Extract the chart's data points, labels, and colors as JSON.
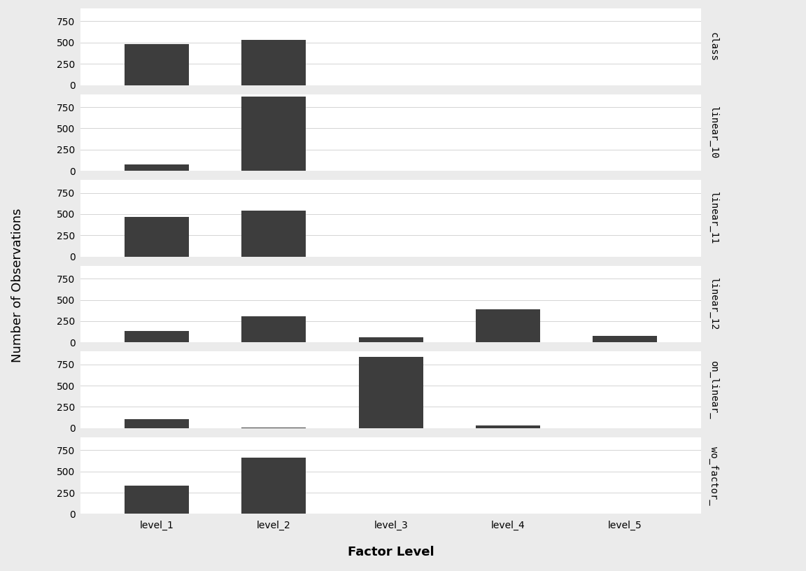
{
  "facets": [
    {
      "name": "class",
      "levels": [
        "level_1",
        "level_2",
        "level_3",
        "level_4",
        "level_5"
      ],
      "values": [
        480,
        530,
        0,
        0,
        0
      ]
    },
    {
      "name": "linear_10",
      "levels": [
        "level_1",
        "level_2",
        "level_3",
        "level_4",
        "level_5"
      ],
      "values": [
        75,
        870,
        0,
        0,
        0
      ]
    },
    {
      "name": "linear_11",
      "levels": [
        "level_1",
        "level_2",
        "level_3",
        "level_4",
        "level_5"
      ],
      "values": [
        470,
        540,
        0,
        0,
        0
      ]
    },
    {
      "name": "linear_12",
      "levels": [
        "level_1",
        "level_2",
        "level_3",
        "level_4",
        "level_5"
      ],
      "values": [
        135,
        310,
        60,
        390,
        75
      ]
    },
    {
      "name": "on_linear_",
      "levels": [
        "level_1",
        "level_2",
        "level_3",
        "level_4",
        "level_5"
      ],
      "values": [
        105,
        10,
        840,
        35,
        0
      ]
    },
    {
      "name": "wo_factor_",
      "levels": [
        "level_1",
        "level_2",
        "level_3",
        "level_4",
        "level_5"
      ],
      "values": [
        330,
        660,
        0,
        0,
        0
      ]
    }
  ],
  "bar_color": "#3d3d3d",
  "bar_width": 0.55,
  "background_color": "#ebebeb",
  "plot_background_color": "#ffffff",
  "grid_color": "#d4d4d4",
  "xlabel": "Factor Level",
  "ylabel": "Number of Observations",
  "ylim": [
    0,
    900
  ],
  "yticks": [
    0,
    250,
    500,
    750
  ],
  "x_positions": [
    0,
    1,
    2,
    3,
    4
  ],
  "label_fontsize": 13,
  "tick_fontsize": 10,
  "facet_label_fontsize": 10
}
